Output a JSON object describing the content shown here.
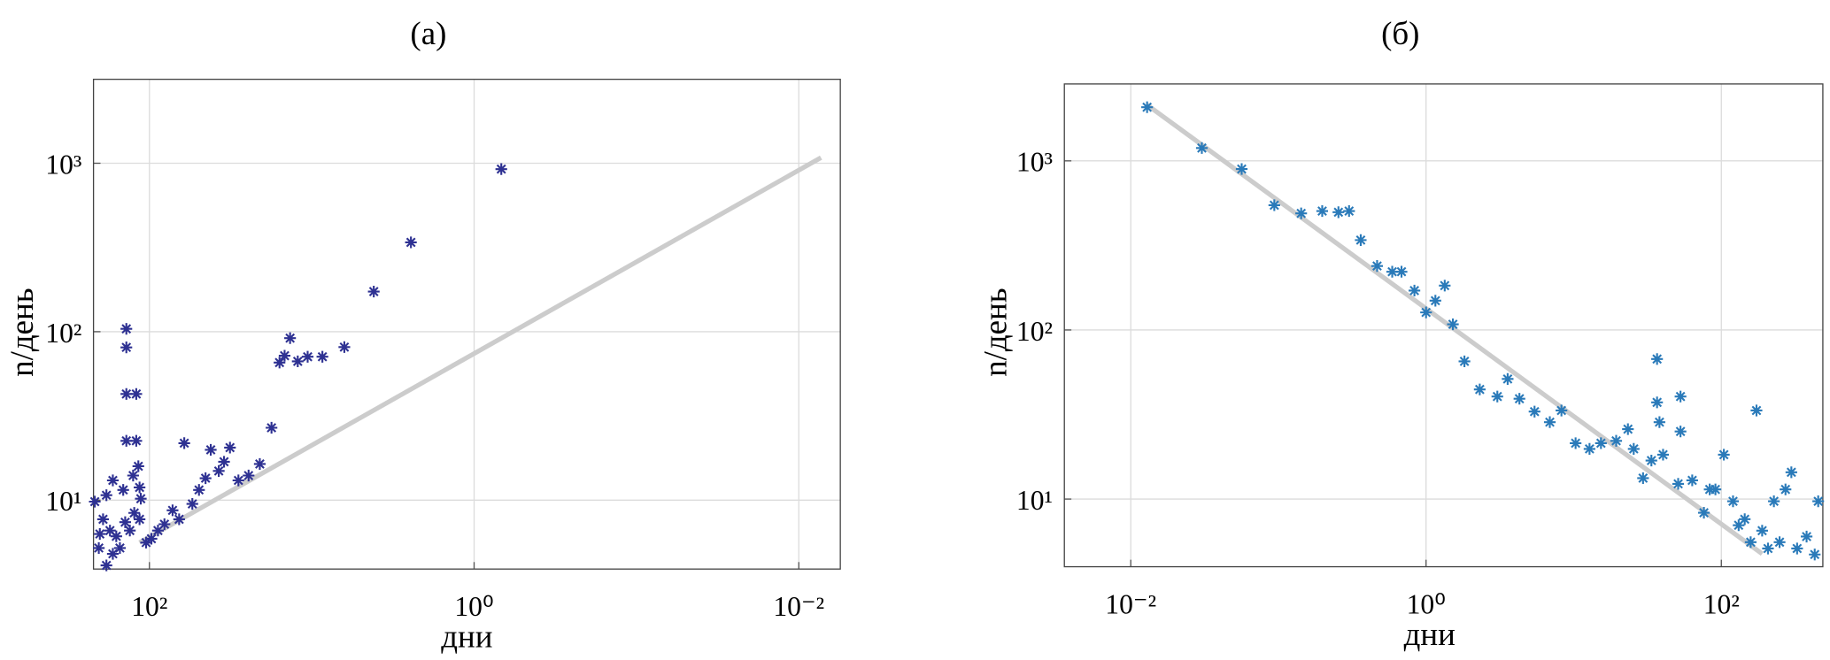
{
  "chart_data": [
    {
      "type": "scatter",
      "title": "(а)",
      "xlabel": "дни",
      "ylabel": "n/день",
      "xscale": "log",
      "yscale": "log",
      "grid": true,
      "marker": "asterisk",
      "color": "#2e3192",
      "xlim": [
        221,
        0.00555
      ],
      "ylim": [
        3.9,
        3150
      ],
      "xticks": [
        {
          "value": 100,
          "label": "10²"
        },
        {
          "value": 1,
          "label": "10⁰"
        },
        {
          "value": 0.01,
          "label": "10⁻²"
        }
      ],
      "yticks": [
        {
          "value": 10,
          "label": "10¹"
        },
        {
          "value": 100,
          "label": "10²"
        },
        {
          "value": 1000,
          "label": "10³"
        }
      ],
      "x": [
        0.68,
        2.45,
        4.15,
        6.3,
        8.6,
        10.6,
        12.2,
        13.6,
        14.7,
        15.8,
        17.7,
        20.9,
        24.5,
        28.3,
        31.9,
        34.7,
        37.4,
        41.9,
        45.1,
        49.5,
        54.4,
        61,
        65.6,
        72,
        80.8,
        88.6,
        97.2,
        104.8,
        138.7,
        138.7,
        138.7,
        120.5,
        138.7,
        120.5,
        117,
        126,
        115,
        145,
        168,
        184,
        217,
        193,
        175,
        205,
        184,
        160,
        152,
        132,
        124,
        202,
        168,
        141,
        115,
        113
      ],
      "values": [
        923,
        339,
        173,
        81,
        71,
        71,
        66.7,
        91.6,
        72,
        65.6,
        26.9,
        16.4,
        14,
        13.1,
        20.5,
        16.9,
        14.9,
        19.9,
        13.5,
        11.5,
        9.5,
        21.8,
        7.7,
        8.7,
        7.2,
        6.6,
        5.9,
        5.6,
        104,
        80.7,
        42.7,
        42.7,
        22.5,
        22.5,
        15.9,
        14,
        11.9,
        11.5,
        13.1,
        10.7,
        9.8,
        7.7,
        6.6,
        5.2,
        4.1,
        6.1,
        5.2,
        6.6,
        8.4,
        6.3,
        4.8,
        7.4,
        7.7,
        10.2
      ],
      "fit": {
        "color": "#cccccc",
        "x": [
          115,
          0.0073
        ],
        "y": [
          5.6,
          1080
        ]
      }
    },
    {
      "type": "scatter",
      "title": "(б)",
      "xlabel": "дни",
      "ylabel": "n/день",
      "xscale": "log",
      "yscale": "log",
      "grid": true,
      "marker": "asterisk",
      "color": "#2a7ab9",
      "xlim": [
        0.00355,
        487
      ],
      "ylim": [
        3.98,
        2850
      ],
      "xticks": [
        {
          "value": 0.01,
          "label": "10⁻²"
        },
        {
          "value": 1,
          "label": "10⁰"
        },
        {
          "value": 100,
          "label": "10²"
        }
      ],
      "yticks": [
        {
          "value": 10,
          "label": "10¹"
        },
        {
          "value": 100,
          "label": "10²"
        },
        {
          "value": 1000,
          "label": "10³"
        }
      ],
      "x": [
        0.0129,
        0.0303,
        0.0564,
        0.0938,
        0.1426,
        0.198,
        0.255,
        0.301,
        0.361,
        0.466,
        0.59,
        0.682,
        0.834,
        1,
        1.157,
        1.338,
        1.52,
        1.82,
        2.31,
        3.04,
        3.57,
        4.29,
        5.43,
        6.89,
        8.26,
        10.3,
        12.8,
        15.3,
        19.4,
        23.3,
        25.5,
        29.5,
        33.6,
        36.7,
        36.7,
        38.1,
        40.3,
        52.9,
        52.9,
        51,
        63.5,
        76.2,
        104,
        91.2,
        120,
        144,
        173,
        189,
        227,
        272,
        298,
        326,
        378,
        429,
        453,
        248,
        207,
        158,
        131,
        83.4
      ],
      "values": [
        2077,
        1191,
        895,
        547,
        489,
        505,
        497,
        505,
        340,
        239,
        221,
        221,
        171,
        127,
        149,
        183,
        108,
        65.2,
        44.5,
        40.4,
        51.3,
        39.2,
        32.9,
        28.5,
        33.4,
        21.4,
        19.8,
        21.4,
        22.1,
        25.9,
        19.8,
        13.3,
        16.9,
        67.3,
        37.3,
        28.5,
        18.3,
        40.4,
        25.1,
        12.3,
        12.9,
        8.3,
        18.3,
        11.4,
        9.7,
        7.6,
        33.4,
        6.5,
        9.7,
        11.4,
        14.4,
        5.1,
        6.0,
        4.7,
        9.7,
        5.56,
        5.1,
        5.56,
        7.0,
        11.4
      ],
      "fit": {
        "color": "#cccccc",
        "x": [
          0.0129,
          189
        ],
        "y": [
          2143,
          4.74
        ]
      }
    }
  ]
}
